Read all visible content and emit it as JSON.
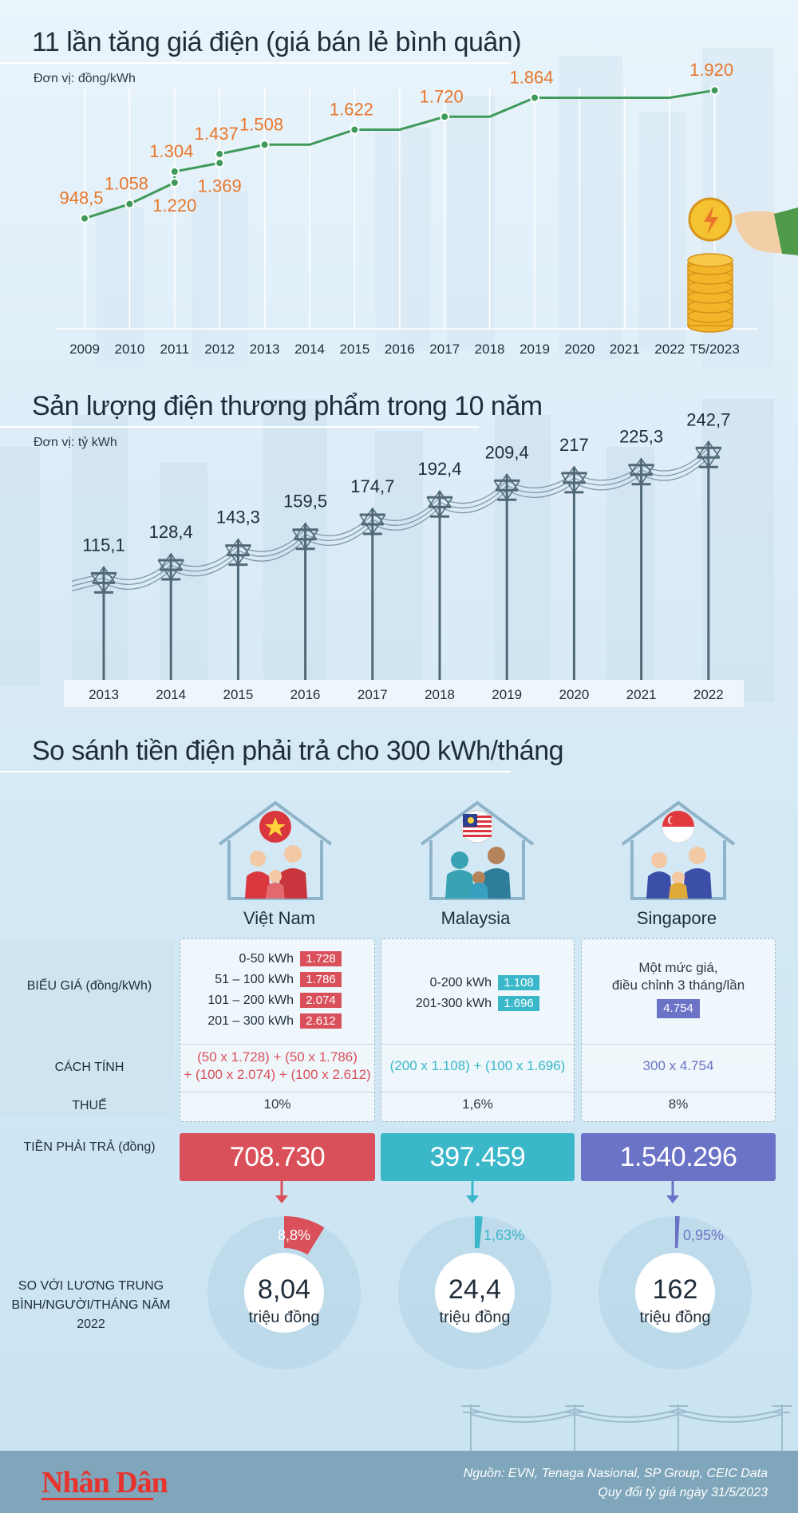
{
  "section1": {
    "title": "11 lần tăng giá điện (giá bán lẻ bình quân)",
    "unit": "Đơn vị: đồng/kWh"
  },
  "section2": {
    "title": "Sản lượng điện thương phẩm trong 10 năm",
    "unit": "Đơn vị: tỷ kWh"
  },
  "section3": {
    "title": "So sánh tiền điện phải trả cho 300 kWh/tháng",
    "row_labels": {
      "tariff": "BIỂU GIÁ (đồng/kWh)",
      "method": "CÁCH TÍNH",
      "tax": "THUẾ",
      "total": "TIỀN PHẢI TRẢ (đồng)",
      "salary": "SO VỚI LƯƠNG TRUNG BÌNH/NGƯỜI/THÁNG NĂM 2022"
    },
    "countries": [
      {
        "name": "Việt Nam",
        "color": "#d9505a",
        "tiers": [
          {
            "range": "0-50 kWh",
            "rate": "1.728"
          },
          {
            "range": "51 – 100 kWh",
            "rate": "1.786"
          },
          {
            "range": "101 – 200 kWh",
            "rate": "2.074"
          },
          {
            "range": "201 – 300 kWh",
            "rate": "2.612"
          }
        ],
        "method_line1": "(50 x 1.728) + (50 x 1.786)",
        "method_line2": "+ (100 x 2.074) + (100 x 2.612)",
        "tax": "10%",
        "total": "708.730",
        "share_label": "8,8%",
        "share_value": 8.8,
        "salary_value": "8,04",
        "salary_unit": "triệu đồng"
      },
      {
        "name": "Malaysia",
        "color": "#3ab7c9",
        "tiers": [
          {
            "range": "0-200 kWh",
            "rate": "1.108"
          },
          {
            "range": "201-300 kWh",
            "rate": "1.696"
          }
        ],
        "method_line1": "(200 x 1.108) + (100 x 1.696)",
        "tax": "1,6%",
        "total": "397.459",
        "share_label": "1,63%",
        "share_value": 1.63,
        "salary_value": "24,4",
        "salary_unit": "triệu đồng"
      },
      {
        "name": "Singapore",
        "color": "#6b73c6",
        "note_line1": "Một mức giá,",
        "note_line2": "điều chỉnh 3 tháng/lần",
        "rate": "4.754",
        "method_line1": "300 x 4.754",
        "tax": "8%",
        "total": "1.540.296",
        "share_label": "0,95%",
        "share_value": 0.95,
        "salary_value": "162",
        "salary_unit": "triệu đồng"
      }
    ]
  },
  "footer": {
    "logo": "Nhân Dân",
    "source_line1": "Nguồn: EVN, Tenaga Nasional, SP Group, CEIC Data",
    "source_line2": "Quy đổi tỷ giá ngày 31/5/2023"
  },
  "chart_data": [
    {
      "type": "line",
      "title": "11 lần tăng giá điện (giá bán lẻ bình quân)",
      "ylabel": "Đơn vị: đồng/kWh",
      "x": [
        "2009",
        "2010",
        "2011",
        "2012",
        "2013",
        "2014",
        "2015",
        "2016",
        "2017",
        "2018",
        "2019",
        "2020",
        "2021",
        "2022",
        "T5/2023"
      ],
      "points": [
        {
          "x": "2009",
          "y": 948.5,
          "label": "948,5"
        },
        {
          "x": "2010",
          "y": 1058,
          "label": "1.058"
        },
        {
          "x": "2011",
          "y": 1220,
          "label": "1.220"
        },
        {
          "x": "2011",
          "y": 1304,
          "label": "1.304"
        },
        {
          "x": "2012",
          "y": 1369,
          "label": "1.369"
        },
        {
          "x": "2012",
          "y": 1437,
          "label": "1.437"
        },
        {
          "x": "2013",
          "y": 1508,
          "label": "1.508"
        },
        {
          "x": "2014",
          "y": 1508,
          "label": ""
        },
        {
          "x": "2015",
          "y": 1622,
          "label": "1.622"
        },
        {
          "x": "2016",
          "y": 1622,
          "label": ""
        },
        {
          "x": "2017",
          "y": 1720,
          "label": "1.720"
        },
        {
          "x": "2018",
          "y": 1720,
          "label": ""
        },
        {
          "x": "2019",
          "y": 1864,
          "label": "1.864"
        },
        {
          "x": "2020",
          "y": 1864,
          "label": ""
        },
        {
          "x": "2021",
          "y": 1864,
          "label": ""
        },
        {
          "x": "2022",
          "y": 1864,
          "label": ""
        },
        {
          "x": "T5/2023",
          "y": 1920,
          "label": "1.920"
        }
      ],
      "ylim": [
        850,
        2000
      ],
      "grid": "vertical",
      "line_color": "#3f9a5a",
      "label_color": "#e8762b"
    },
    {
      "type": "bar",
      "title": "Sản lượng điện thương phẩm trong 10 năm",
      "ylabel": "Đơn vị: tỷ kWh",
      "categories": [
        "2013",
        "2014",
        "2015",
        "2016",
        "2017",
        "2018",
        "2019",
        "2020",
        "2021",
        "2022"
      ],
      "values": [
        115.1,
        128.4,
        143.3,
        159.5,
        174.7,
        192.4,
        209.4,
        217,
        225.3,
        242.7
      ],
      "labels": [
        "115,1",
        "128,4",
        "143,3",
        "159,5",
        "174,7",
        "192,4",
        "209,4",
        "217",
        "225,3",
        "242,7"
      ],
      "ylim": [
        0,
        260
      ],
      "mark": "power-pylon"
    }
  ]
}
